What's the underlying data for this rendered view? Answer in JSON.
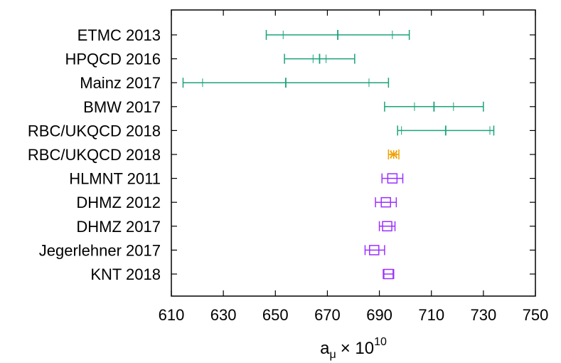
{
  "chart_data": {
    "type": "scatter",
    "title": "",
    "xlabel": {
      "base": "a",
      "subscript": "μ",
      "times": "× 10",
      "exponent": "10"
    },
    "ylabel": "",
    "xlim": [
      610,
      750
    ],
    "xticks": [
      610,
      630,
      650,
      670,
      690,
      710,
      730,
      750
    ],
    "grid": false,
    "legend": false,
    "colors": {
      "lattice": "#1aa37a",
      "lattice_highlight": "#f0a000",
      "dispersive": "#9b30ff",
      "axis": "#000000"
    },
    "rows": [
      {
        "label": "ETMC 2013",
        "group": "lattice",
        "marker": "plus",
        "value": 674.0,
        "inner": [
          653.0,
          695.0
        ],
        "outer": [
          646.5,
          701.5
        ]
      },
      {
        "label": "HPQCD 2016",
        "group": "lattice",
        "marker": "plus",
        "value": 667.0,
        "inner": [
          664.5,
          669.5
        ],
        "outer": [
          653.5,
          680.5
        ]
      },
      {
        "label": "Mainz 2017",
        "group": "lattice",
        "marker": "plus",
        "value": 654.0,
        "inner": [
          622.0,
          686.0
        ],
        "outer": [
          614.5,
          693.5
        ]
      },
      {
        "label": "BMW 2017",
        "group": "lattice",
        "marker": "plus",
        "value": 711.0,
        "inner": [
          703.5,
          718.5
        ],
        "outer": [
          692.0,
          730.0
        ]
      },
      {
        "label": "RBC/UKQCD 2018",
        "group": "lattice",
        "marker": "plus",
        "value": 715.5,
        "inner": [
          698.5,
          732.5
        ],
        "outer": [
          697.0,
          734.0
        ]
      },
      {
        "label": "RBC/UKQCD 2018",
        "group": "lattice_highlight",
        "marker": "star",
        "value": 695.5,
        "inner": [
          694.5,
          696.5
        ],
        "outer": [
          693.5,
          697.5
        ]
      },
      {
        "label": "HLMNT 2011",
        "group": "dispersive",
        "marker": "square",
        "value": 695.0,
        "outer": [
          691.0,
          699.0
        ]
      },
      {
        "label": "DHMZ 2012",
        "group": "dispersive",
        "marker": "square",
        "value": 692.5,
        "outer": [
          688.5,
          696.5
        ]
      },
      {
        "label": "DHMZ 2017",
        "group": "dispersive",
        "marker": "square",
        "value": 693.0,
        "outer": [
          690.0,
          696.0
        ]
      },
      {
        "label": "Jegerlehner 2017",
        "group": "dispersive",
        "marker": "square",
        "value": 688.0,
        "outer": [
          684.5,
          692.0
        ]
      },
      {
        "label": "KNT 2018",
        "group": "dispersive",
        "marker": "square",
        "value": 693.5,
        "outer": [
          691.5,
          695.5
        ]
      }
    ]
  }
}
